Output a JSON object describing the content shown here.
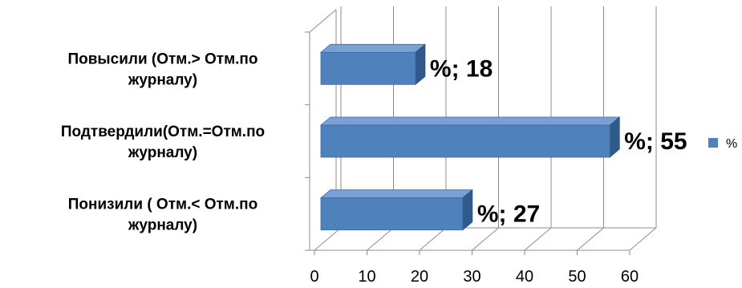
{
  "chart_data": {
    "type": "bar",
    "orientation": "horizontal",
    "style": "3d",
    "categories": [
      [
        "Повысили (Отм.> Отм.по",
        "журналу)"
      ],
      [
        "Подтвердили(Отм.=Отм.по",
        "журналу)"
      ],
      [
        "Понизили ( Отм.< Отм.по",
        "журналу)"
      ]
    ],
    "series": [
      {
        "name": "%",
        "values": [
          18,
          55,
          27
        ],
        "data_labels": [
          "%; 18",
          "%; 55",
          "%; 27"
        ],
        "color": "#4f81bd"
      }
    ],
    "xlim": [
      0,
      60
    ],
    "xticks": [
      "0",
      "10",
      "20",
      "30",
      "40",
      "50",
      "60"
    ],
    "grid": "vertical",
    "legend": "right",
    "title": "",
    "xlabel": "",
    "ylabel": ""
  }
}
